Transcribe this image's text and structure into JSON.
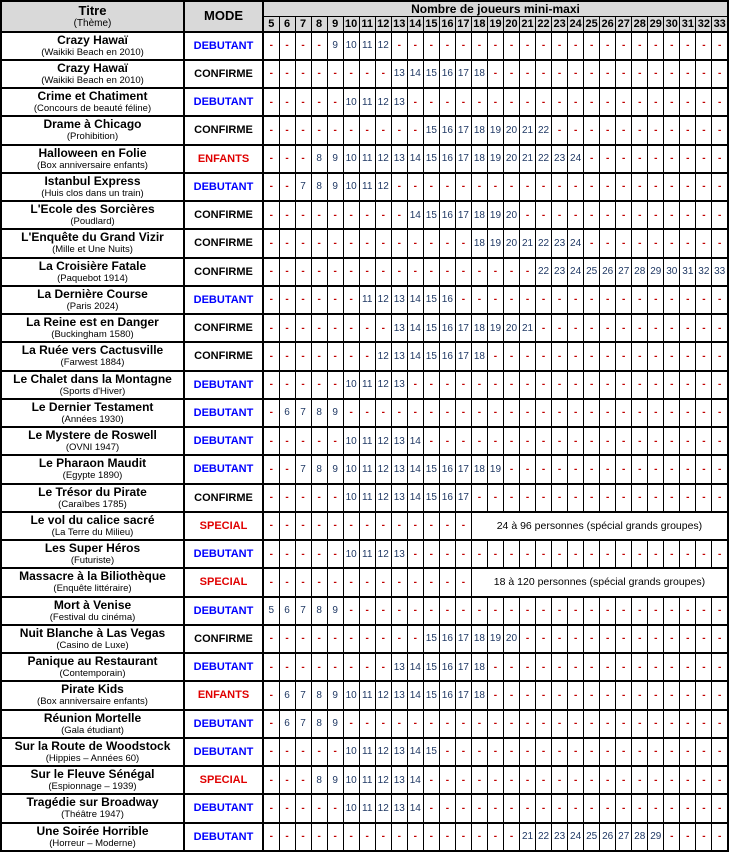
{
  "header": {
    "title_label": "Titre",
    "title_sublabel": "(Thème)",
    "mode_label": "MODE",
    "players_label": "Nombre de joueurs mini-maxi",
    "player_columns": [
      5,
      6,
      7,
      8,
      9,
      10,
      11,
      12,
      13,
      14,
      15,
      16,
      17,
      18,
      19,
      20,
      21,
      22,
      23,
      24,
      25,
      26,
      27,
      28,
      29,
      30,
      31,
      32,
      33
    ]
  },
  "dash_glyph": "-",
  "mode_colors": {
    "DEBUTANT": "#0000ff",
    "CONFIRME": "#000000",
    "ENFANTS": "#e00000",
    "SPECIAL": "#e00000"
  },
  "colors": {
    "header_bg": "#d9d9d9",
    "data_number": "#1f3864",
    "dash": "#c00000",
    "border": "#000000"
  },
  "rows": [
    {
      "title": "Crazy Hawaï",
      "theme": "(Waikiki Beach en 2010)",
      "mode": "DEBUTANT",
      "min": 9,
      "max": 12
    },
    {
      "title": "Crazy Hawaï",
      "theme": "(Waikiki Beach en 2010)",
      "mode": "CONFIRME",
      "min": 13,
      "max": 18
    },
    {
      "title": "Crime et Chatiment",
      "theme": "(Concours de beauté féline)",
      "mode": "DEBUTANT",
      "min": 10,
      "max": 13
    },
    {
      "title": "Drame à Chicago",
      "theme": "(Prohibition)",
      "mode": "CONFIRME",
      "min": 15,
      "max": 22
    },
    {
      "title": "Halloween en Folie",
      "theme": "(Box anniversaire enfants)",
      "mode": "ENFANTS",
      "min": 8,
      "max": 24
    },
    {
      "title": "Istanbul Express",
      "theme": "(Huis clos dans un train)",
      "mode": "DEBUTANT",
      "min": 7,
      "max": 12
    },
    {
      "title": "L'Ecole des Sorcières",
      "theme": "(Poudlard)",
      "mode": "CONFIRME",
      "min": 14,
      "max": 20
    },
    {
      "title": "L'Enquête du Grand Vizir",
      "theme": "(Mille et Une Nuits)",
      "mode": "CONFIRME",
      "min": 18,
      "max": 24
    },
    {
      "title": "La Croisière Fatale",
      "theme": "(Paquebot 1914)",
      "mode": "CONFIRME",
      "min": 22,
      "max": 33
    },
    {
      "title": "La Dernière Course",
      "theme": "(Paris 2024)",
      "mode": "DEBUTANT",
      "min": 11,
      "max": 16
    },
    {
      "title": "La Reine est en Danger",
      "theme": "(Buckingham 1580)",
      "mode": "CONFIRME",
      "min": 13,
      "max": 21
    },
    {
      "title": "La Ruée vers Cactusville",
      "theme": "(Farwest 1884)",
      "mode": "CONFIRME",
      "min": 12,
      "max": 18
    },
    {
      "title": "Le Chalet dans la Montagne",
      "theme": "(Sports d'Hiver)",
      "mode": "DEBUTANT",
      "min": 10,
      "max": 13
    },
    {
      "title": "Le Dernier Testament",
      "theme": "(Années 1930)",
      "mode": "DEBUTANT",
      "min": 6,
      "max": 9
    },
    {
      "title": "Le Mystere de Roswell",
      "theme": "(OVNI 1947)",
      "mode": "DEBUTANT",
      "min": 10,
      "max": 14
    },
    {
      "title": "Le Pharaon Maudit",
      "theme": "(Egypte 1890)",
      "mode": "DEBUTANT",
      "min": 7,
      "max": 19
    },
    {
      "title": "Le Trésor du Pirate",
      "theme": "(Caraïbes 1785)",
      "mode": "CONFIRME",
      "min": 10,
      "max": 17
    },
    {
      "title": "Le vol du calice sacré",
      "theme": "(La Terre du Milieu)",
      "mode": "SPECIAL",
      "special_text": "24 à 96 personnes (spécial grands groupes)",
      "special_from": 18
    },
    {
      "title": "Les Super Héros",
      "theme": "(Futuriste)",
      "mode": "DEBUTANT",
      "min": 10,
      "max": 13
    },
    {
      "title": "Massacre à la Biliothèque",
      "theme": "(Enquête littéraire)",
      "mode": "SPECIAL",
      "special_text": "18 à 120 personnes (spécial grands groupes)",
      "special_from": 18
    },
    {
      "title": "Mort à Venise",
      "theme": "(Festival du cinéma)",
      "mode": "DEBUTANT",
      "min": 5,
      "max": 9
    },
    {
      "title": "Nuit Blanche à Las Vegas",
      "theme": "(Casino de Luxe)",
      "mode": "CONFIRME",
      "min": 15,
      "max": 20
    },
    {
      "title": "Panique au Restaurant",
      "theme": "(Contemporain)",
      "mode": "DEBUTANT",
      "min": 13,
      "max": 18
    },
    {
      "title": "Pirate Kids",
      "theme": "(Box anniversaire enfants)",
      "mode": "ENFANTS",
      "min": 6,
      "max": 18
    },
    {
      "title": "Réunion Mortelle",
      "theme": "(Gala étudiant)",
      "mode": "DEBUTANT",
      "min": 6,
      "max": 9
    },
    {
      "title": "Sur la Route de Woodstock",
      "theme": "(Hippies – Années 60)",
      "mode": "DEBUTANT",
      "min": 10,
      "max": 15
    },
    {
      "title": "Sur le Fleuve Sénégal",
      "theme": "(Espionnage – 1939)",
      "mode": "SPECIAL",
      "min": 8,
      "max": 14
    },
    {
      "title": "Tragédie sur Broadway",
      "theme": "(Théâtre 1947)",
      "mode": "DEBUTANT",
      "min": 10,
      "max": 14
    },
    {
      "title": "Une Soirée Horrible",
      "theme": "(Horreur – Moderne)",
      "mode": "DEBUTANT",
      "min": 21,
      "max": 29
    }
  ]
}
